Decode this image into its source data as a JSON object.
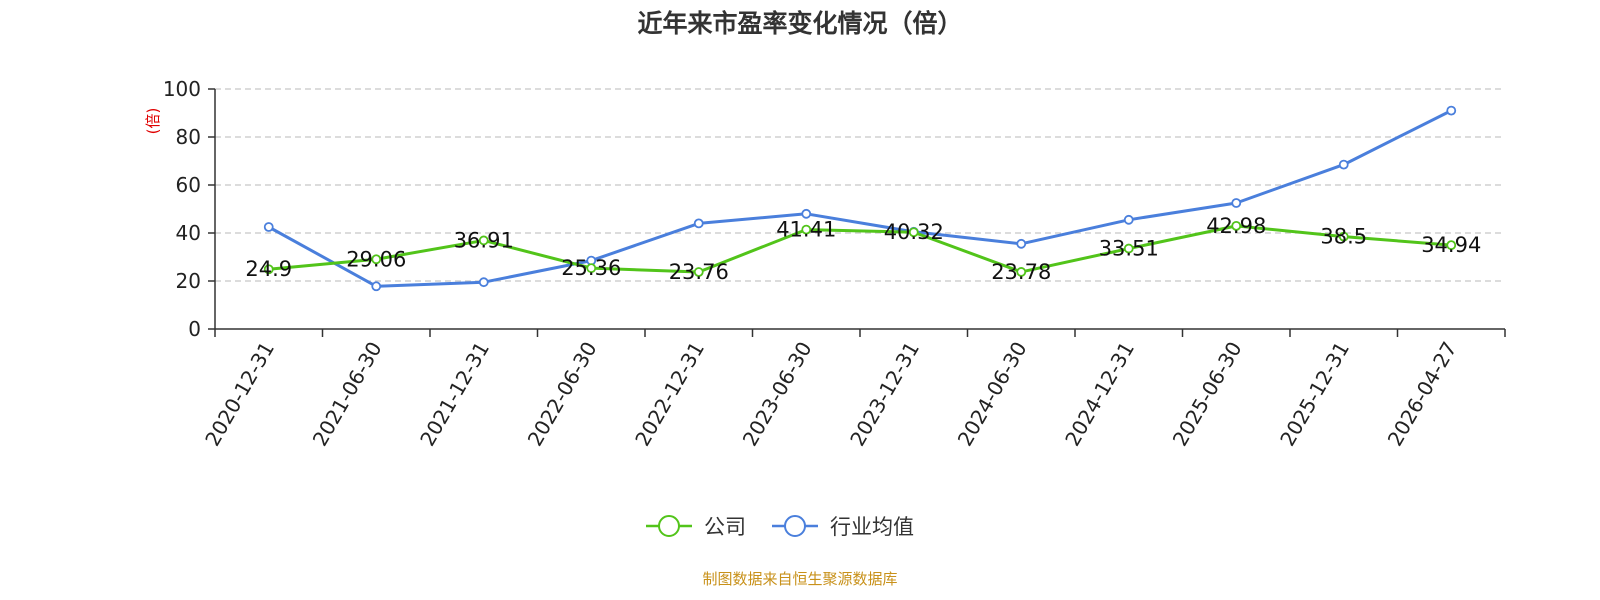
{
  "chart_data": {
    "type": "line",
    "title": "近年来市盈率变化情况（倍）",
    "ylabel": "(倍)",
    "ylim": [
      0,
      100
    ],
    "yticks": [
      0,
      20,
      40,
      60,
      80,
      100
    ],
    "categories": [
      "2020-12-31",
      "2021-06-30",
      "2021-12-31",
      "2022-06-30",
      "2022-12-31",
      "2023-06-30",
      "2023-12-31",
      "2024-06-30",
      "2024-12-31",
      "2025-06-30",
      "2025-12-31",
      "2026-04-27"
    ],
    "series": [
      {
        "name": "公司",
        "color": "#52c41a",
        "values": [
          24.9,
          29.06,
          36.91,
          25.36,
          23.76,
          41.41,
          40.32,
          23.78,
          33.51,
          42.98,
          38.5,
          34.94
        ],
        "labels": [
          "24.9",
          "29.06",
          "36.91",
          "25.36",
          "23.76",
          "41.41",
          "40.32",
          "23.78",
          "33.51",
          "42.98",
          "38.5",
          "34.94"
        ]
      },
      {
        "name": "行业均值",
        "color": "#4a7fdc",
        "values": [
          42.5,
          17.8,
          19.5,
          28.5,
          44.0,
          48.0,
          40.5,
          35.5,
          45.5,
          52.5,
          68.5,
          91.0
        ]
      }
    ],
    "grid": true,
    "legend_position": "bottom-center",
    "ylabel_color": "#e00000"
  },
  "source": {
    "text": "制图数据来自恒生聚源数据库",
    "color": "#c8911a"
  }
}
